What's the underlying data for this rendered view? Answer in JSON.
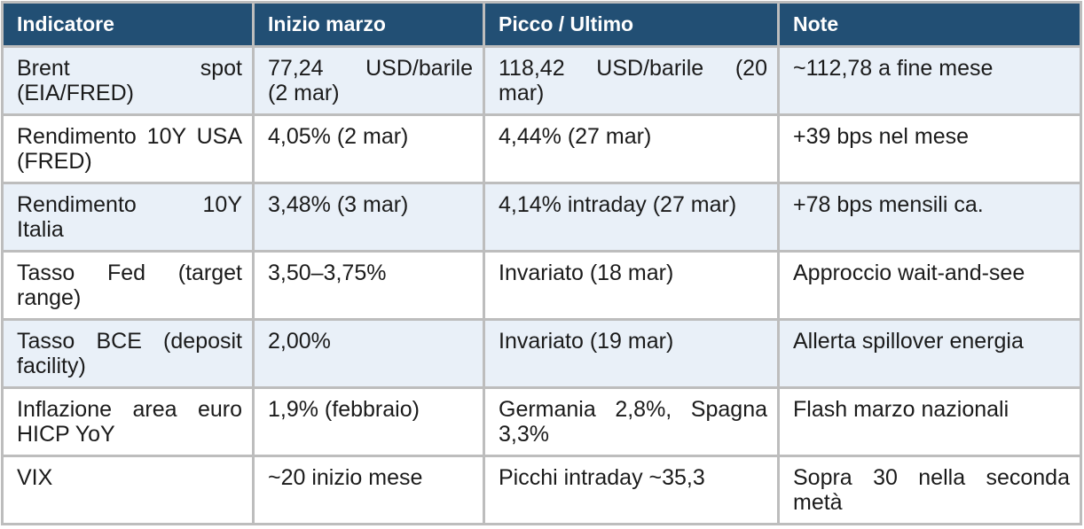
{
  "colors": {
    "header_bg": "#224f74",
    "header_text": "#ffffff",
    "row_shaded_bg": "#e9f0f8",
    "row_plain_bg": "#ffffff",
    "border": "#bdbdbd",
    "body_text": "#1b1b1b"
  },
  "table": {
    "headers": [
      {
        "label": "Indicatore"
      },
      {
        "label": "Inizio marzo"
      },
      {
        "label": "Picco / Ultimo"
      },
      {
        "label": "Note"
      }
    ],
    "rows": [
      {
        "cells": [
          "Brent spot\n(EIA/FRED)",
          "77,24 USD/barile\n(2 mar)",
          "118,42 USD/barile (20\nmar)",
          "~112,78 a fine mese"
        ]
      },
      {
        "cells": [
          "Rendimento 10Y USA\n(FRED)",
          "4,05% (2 mar)",
          "4,44% (27 mar)",
          "+39 bps nel mese"
        ]
      },
      {
        "cells": [
          "Rendimento 10Y\nItalia",
          "3,48% (3 mar)",
          "4,14% intraday (27 mar)",
          "+78 bps mensili ca."
        ]
      },
      {
        "cells": [
          "Tasso Fed (target\nrange)",
          "3,50–3,75%",
          "Invariato (18 mar)",
          "Approccio wait-and-see"
        ]
      },
      {
        "cells": [
          "Tasso BCE (deposit\nfacility)",
          "2,00%",
          "Invariato (19 mar)",
          "Allerta spillover energia"
        ]
      },
      {
        "cells": [
          "Inflazione area euro\nHICP YoY",
          "1,9% (febbraio)",
          "Germania 2,8%, Spagna\n3,3%",
          "Flash marzo nazionali"
        ]
      },
      {
        "cells": [
          "VIX",
          "~20 inizio mese",
          "Picchi intraday ~35,3",
          "Sopra 30 nella seconda\nmetà"
        ]
      }
    ]
  }
}
